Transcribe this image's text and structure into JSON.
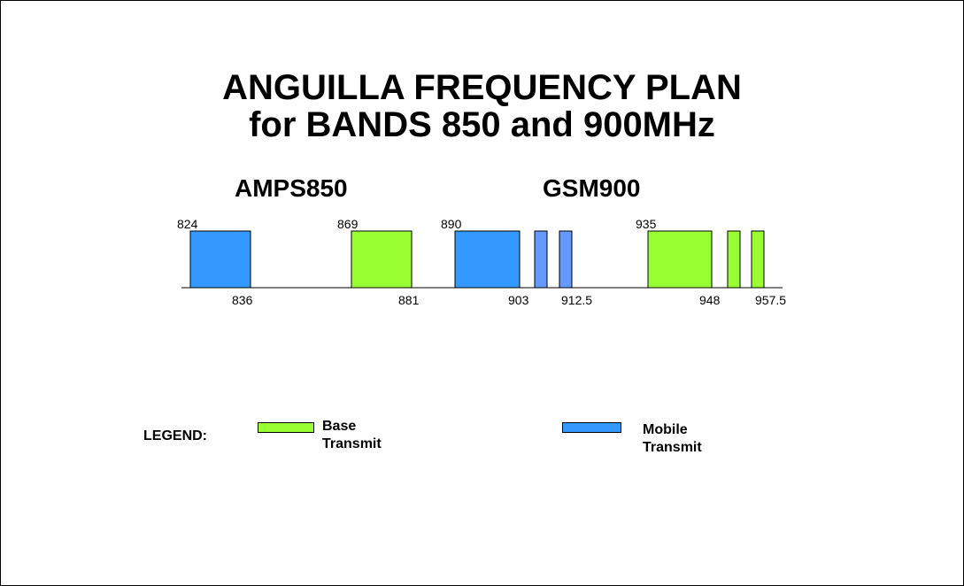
{
  "title": {
    "line1": "ANGUILLA FREQUENCY PLAN",
    "line2": "for BANDS 850 and 900MHz"
  },
  "sections": {
    "amps": "AMPS850",
    "gsm": "GSM900"
  },
  "colors": {
    "base": "#99ff33",
    "mobile": "#3399ff",
    "mobile_ext": "#6699ff",
    "axis": "#000000"
  },
  "bands": [
    {
      "id": "amps-mobile",
      "start": "824",
      "end": "836",
      "type": "mobile"
    },
    {
      "id": "amps-base",
      "start": "869",
      "end": "881",
      "type": "base"
    },
    {
      "id": "gsm-mobile",
      "start": "890",
      "end": "903",
      "type": "mobile"
    },
    {
      "id": "gsm-mobile-ext-1",
      "start": "",
      "end": "",
      "type": "mobile_ext"
    },
    {
      "id": "gsm-mobile-ext-2",
      "start": "",
      "end": "912.5",
      "type": "mobile_ext"
    },
    {
      "id": "gsm-base",
      "start": "935",
      "end": "948",
      "type": "base"
    },
    {
      "id": "gsm-base-ext-1",
      "start": "",
      "end": "",
      "type": "base"
    },
    {
      "id": "gsm-base-ext-2",
      "start": "",
      "end": "957.5",
      "type": "base"
    }
  ],
  "legend": {
    "title": "LEGEND:",
    "base_line1": "Base",
    "base_line2": "Transmit",
    "mobile_line1": "Mobile",
    "mobile_line2": "Transmit"
  }
}
